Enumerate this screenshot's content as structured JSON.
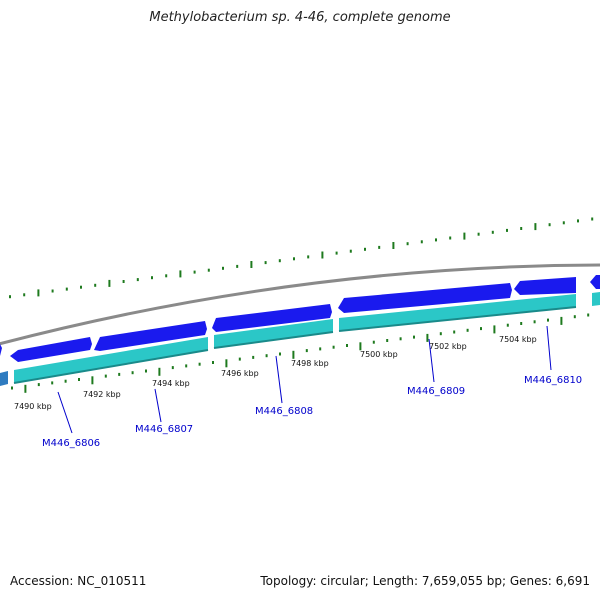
{
  "title": "Methylobacterium sp. 4-46, complete genome",
  "accession": "Accession: NC_010511",
  "summary": "Topology: circular; Length: 7,659,055 bp; Genes: 6,691",
  "colors": {
    "backbone": "#8a8a8a",
    "gene_forward": "#1a1aee",
    "gene_reverse": "#2bc7c7",
    "gc_ticks": "#1e7a1e",
    "label_text": "#0000cc"
  },
  "scale_labels": [
    "7490 kbp",
    "7492 kbp",
    "7494 kbp",
    "7496 kbp",
    "7498 kbp",
    "7500 kbp",
    "7502 kbp",
    "7504 kbp"
  ],
  "gene_labels": [
    "M446_6806",
    "M446_6807",
    "M446_6808",
    "M446_6809",
    "M446_6810"
  ]
}
